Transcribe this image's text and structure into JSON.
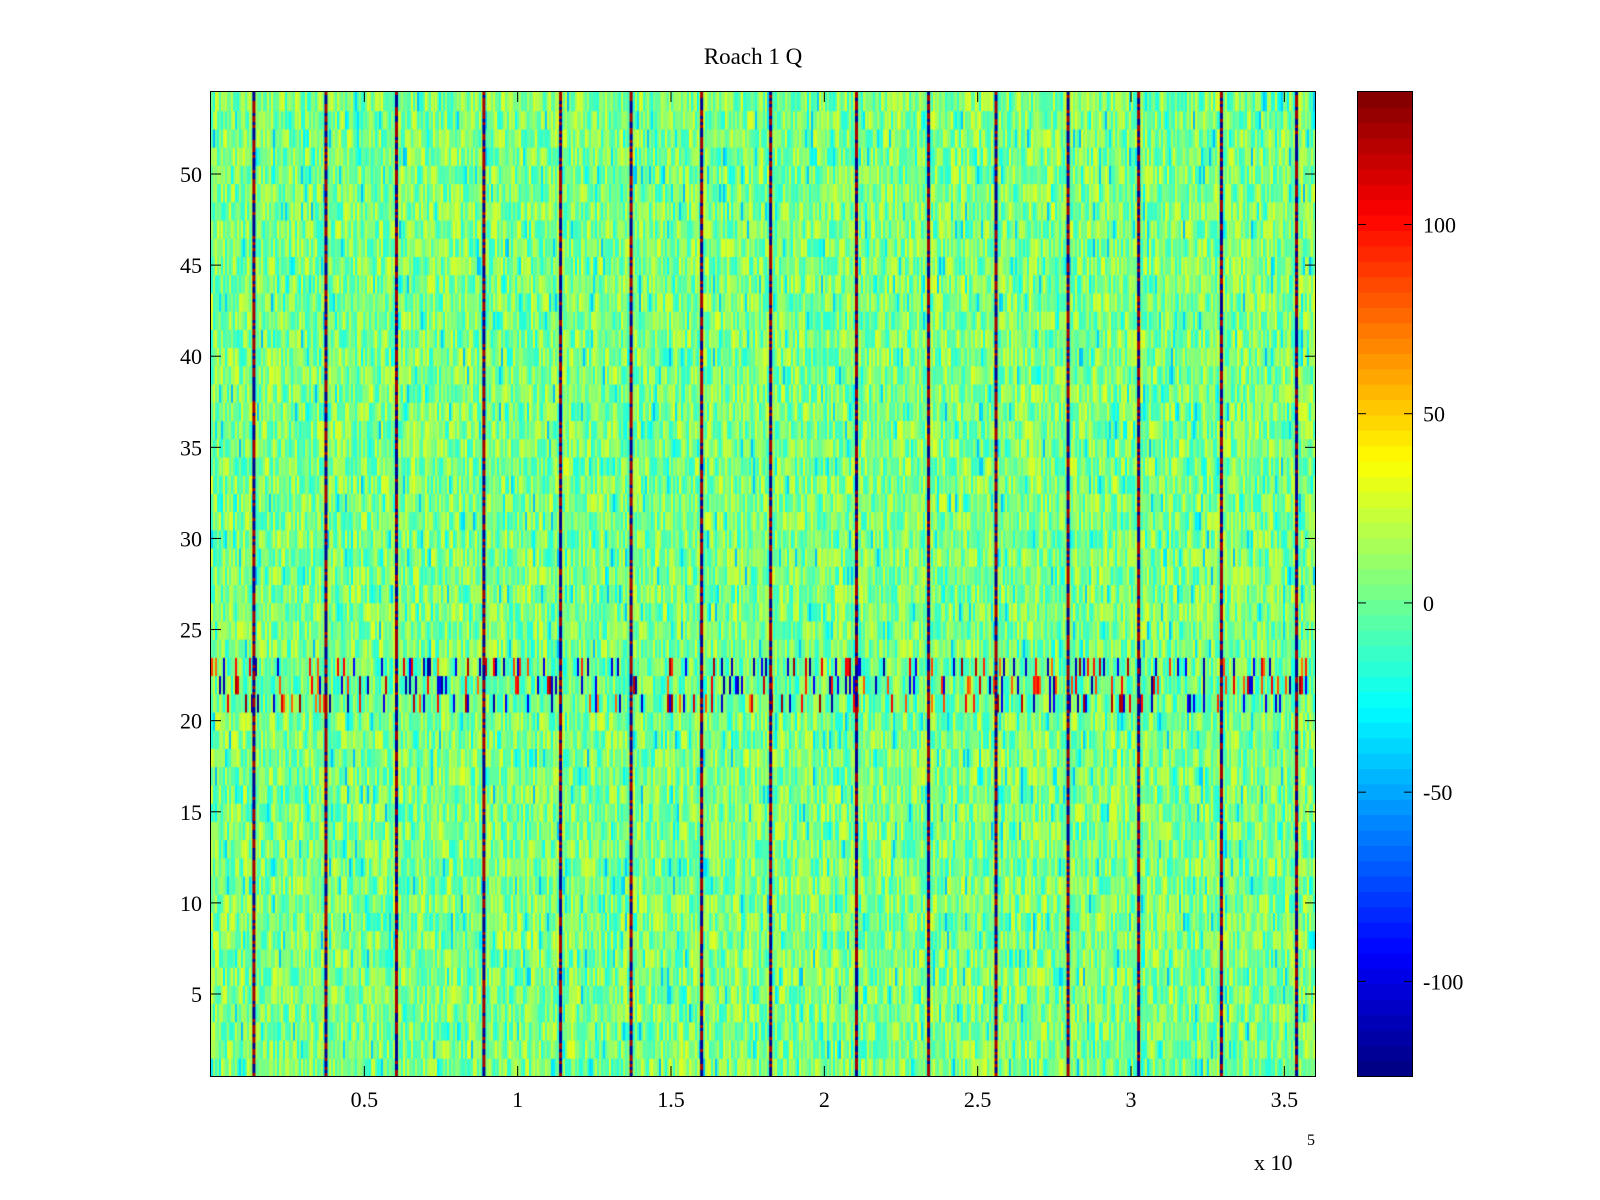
{
  "chart_data": {
    "type": "heatmap",
    "title": "Roach 1 Q",
    "xlabel": "",
    "ylabel": "",
    "x_range": [
      0,
      360000
    ],
    "y_range": [
      0.5,
      54.5
    ],
    "x_ticks": [
      50000,
      100000,
      150000,
      200000,
      250000,
      300000,
      350000
    ],
    "x_tick_labels": [
      "0.5",
      "1",
      "1.5",
      "2",
      "2.5",
      "3",
      "3.5"
    ],
    "x_multiplier_label": {
      "base": "x 10",
      "exponent": "5"
    },
    "y_ticks": [
      5,
      10,
      15,
      20,
      25,
      30,
      35,
      40,
      45,
      50
    ],
    "y_tick_labels": [
      "5",
      "10",
      "15",
      "20",
      "25",
      "30",
      "35",
      "40",
      "45",
      "50"
    ],
    "rows": 54,
    "colorbar": {
      "colormap": "jet",
      "range": [
        -125,
        135
      ],
      "ticks": [
        -100,
        -50,
        0,
        50,
        100
      ],
      "tick_labels": [
        "-100",
        "-50",
        "0",
        "50",
        "100"
      ]
    },
    "grid": false,
    "typical_value_range": [
      -20,
      30
    ],
    "noisy_rows": [
      21,
      22,
      23
    ],
    "vertical_artifact_x": [
      13500,
      37000,
      60000,
      88500,
      113500,
      136500,
      159500,
      182000,
      210000,
      233500,
      255500,
      279000,
      302000,
      329000,
      353500
    ]
  }
}
